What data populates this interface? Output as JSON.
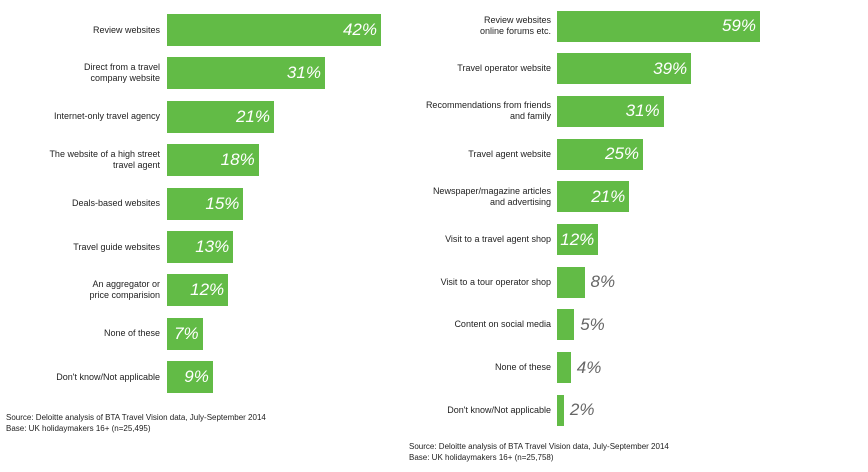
{
  "colors": {
    "bar": "#62bb46",
    "value_inside": "#ffffff",
    "value_outside": "#666666"
  },
  "chart_data": [
    {
      "type": "bar",
      "orientation": "horizontal",
      "title": "",
      "xlabel": "",
      "ylabel": "",
      "xlim": [
        0,
        42
      ],
      "grid": false,
      "categories": [
        "Review websites",
        "Direct from a travel\ncompany website",
        "Internet-only travel agency",
        "The website of a high street\ntravel agent",
        "Deals-based websites",
        "Travel guide websites",
        "An aggregator or\nprice comparision",
        "None of these",
        "Don't know/Not applicable"
      ],
      "values": [
        42,
        31,
        21,
        18,
        15,
        13,
        12,
        7,
        9
      ],
      "value_labels": [
        "42%",
        "31%",
        "21%",
        "18%",
        "15%",
        "13%",
        "12%",
        "7%",
        "9%"
      ],
      "source": "Source: Deloitte analysis of BTA Travel Vision data, July-September 2014",
      "base": "Base: UK holidaymakers 16+ (n=25,495)"
    },
    {
      "type": "bar",
      "orientation": "horizontal",
      "title": "",
      "xlabel": "",
      "ylabel": "",
      "xlim": [
        0,
        59
      ],
      "grid": false,
      "categories": [
        "Review websites\nonline forums etc.",
        "Travel operator website",
        "Recommendations from friends\nand family",
        "Travel agent website",
        "Newspaper/magazine articles\nand advertising",
        "Visit to a travel agent shop",
        "Visit to a tour operator shop",
        "Content on social media",
        "None of these",
        "Don't know/Not applicable"
      ],
      "values": [
        59,
        39,
        31,
        25,
        21,
        12,
        8,
        5,
        4,
        2
      ],
      "value_labels": [
        "59%",
        "39%",
        "31%",
        "25%",
        "21%",
        "12%",
        "8%",
        "5%",
        "4%",
        "2%"
      ],
      "source": "Source: Deloitte analysis of BTA Travel Vision data, July-September 2014",
      "base": "Base: UK holidaymakers 16+ (n=25,758)"
    }
  ]
}
